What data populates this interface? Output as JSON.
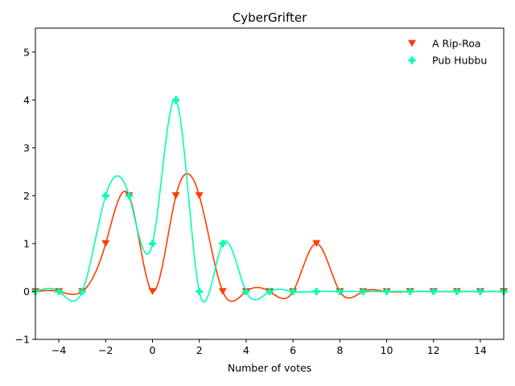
{
  "chart_data": {
    "type": "line",
    "title": "CyberGrifter",
    "xlabel": "Number of votes",
    "ylabel": "",
    "xlim": [
      -5,
      15
    ],
    "ylim": [
      -1,
      5.5
    ],
    "xticks": [
      -4,
      -2,
      0,
      2,
      4,
      6,
      8,
      10,
      12,
      14
    ],
    "xtick_labels": [
      "−4",
      "−2",
      "0",
      "2",
      "4",
      "6",
      "8",
      "10",
      "12",
      "14"
    ],
    "yticks": [
      -1,
      0,
      1,
      2,
      3,
      4,
      5
    ],
    "ytick_labels": [
      "−1",
      "0",
      "1",
      "2",
      "3",
      "4",
      "5"
    ],
    "grid": false,
    "legend_position": "top-right",
    "x": [
      -5,
      -4,
      -3,
      -2,
      -1,
      0,
      1,
      2,
      3,
      4,
      5,
      6,
      7,
      8,
      9,
      10,
      11,
      12,
      13,
      14,
      15
    ],
    "series": [
      {
        "name": "A Rip-Roa",
        "color": "#ff3d00",
        "marker": "triangle-down",
        "values": [
          0,
          0,
          0,
          1,
          2,
          0,
          2,
          2,
          0,
          0,
          0,
          0,
          1,
          0,
          0,
          0,
          0,
          0,
          0,
          0,
          0
        ]
      },
      {
        "name": "Pub Hubbu",
        "color": "#00ffb0",
        "marker": "plus",
        "values": [
          0,
          0,
          0,
          2,
          2,
          1,
          4,
          0,
          1,
          0,
          0,
          0,
          0,
          0,
          0,
          0,
          0,
          0,
          0,
          0,
          0
        ]
      }
    ]
  }
}
